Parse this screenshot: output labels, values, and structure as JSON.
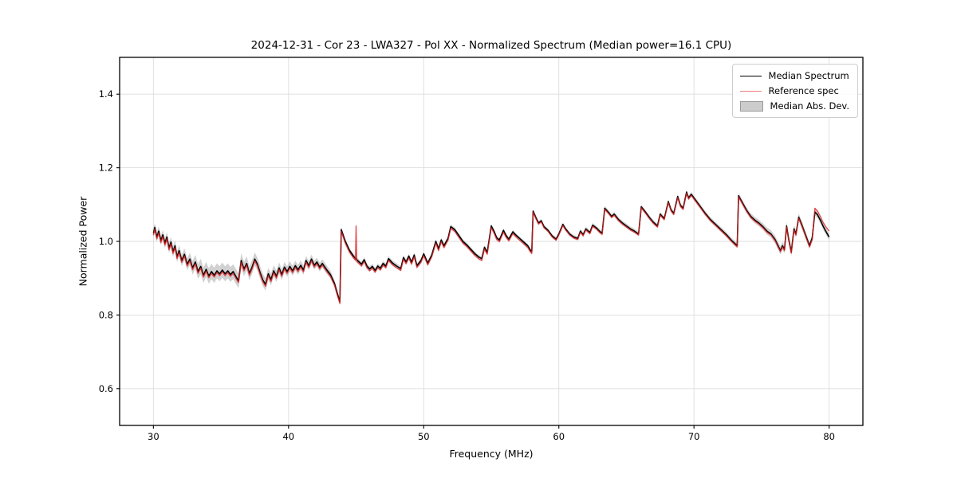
{
  "chart_data": {
    "type": "line",
    "title": "2024-12-31 - Cor 23 - LWA327 - Pol XX - Normalized Spectrum (Median power=16.1 CPU)",
    "xlabel": "Frequency (MHz)",
    "ylabel": "Normalized Power",
    "xlim": [
      27.5,
      82.5
    ],
    "ylim": [
      0.5,
      1.5
    ],
    "xticks": [
      30,
      40,
      50,
      60,
      70,
      80
    ],
    "yticks": [
      0.6,
      0.8,
      1.0,
      1.2,
      1.4
    ],
    "grid": true,
    "legend_position": "upper right",
    "colors": {
      "median": "#000000",
      "reference": "#dd2222",
      "reference_opacity": 0.8,
      "reference_legend": "#ee8080",
      "band_fill": "#999999",
      "band_opacity": 0.45,
      "band_legend": "#cccccc",
      "grid": "#dddddd",
      "spine": "#000000"
    },
    "x": [
      30.0,
      30.1,
      30.25,
      30.4,
      30.55,
      30.7,
      30.85,
      31.0,
      31.15,
      31.3,
      31.45,
      31.6,
      31.75,
      31.9,
      32.1,
      32.3,
      32.5,
      32.7,
      32.9,
      33.1,
      33.3,
      33.5,
      33.7,
      33.9,
      34.1,
      34.3,
      34.5,
      34.7,
      34.9,
      35.1,
      35.3,
      35.5,
      35.7,
      35.9,
      36.1,
      36.3,
      36.5,
      36.7,
      36.9,
      37.1,
      37.3,
      37.5,
      37.7,
      37.9,
      38.1,
      38.3,
      38.5,
      38.7,
      38.9,
      39.1,
      39.3,
      39.5,
      39.7,
      39.9,
      40.1,
      40.3,
      40.5,
      40.7,
      40.9,
      41.1,
      41.3,
      41.5,
      41.7,
      41.9,
      42.1,
      42.3,
      42.5,
      42.8,
      43.1,
      43.4,
      43.6,
      43.8,
      43.9,
      44.2,
      44.5,
      44.8,
      44.95,
      45.0,
      45.05,
      45.2,
      45.4,
      45.6,
      45.8,
      46.0,
      46.2,
      46.4,
      46.6,
      46.8,
      47.0,
      47.2,
      47.4,
      47.7,
      48.0,
      48.3,
      48.5,
      48.7,
      48.9,
      49.1,
      49.3,
      49.5,
      49.8,
      50.0,
      50.3,
      50.6,
      50.9,
      51.1,
      51.3,
      51.5,
      51.8,
      52.0,
      52.3,
      52.6,
      52.9,
      53.2,
      53.5,
      53.8,
      54.1,
      54.3,
      54.5,
      54.7,
      55.0,
      55.2,
      55.4,
      55.6,
      55.9,
      56.1,
      56.3,
      56.6,
      56.8,
      57.1,
      57.4,
      57.7,
      57.9,
      58.0,
      58.1,
      58.3,
      58.5,
      58.7,
      58.9,
      59.2,
      59.5,
      59.8,
      60.0,
      60.3,
      60.5,
      60.8,
      61.1,
      61.4,
      61.6,
      61.8,
      62.0,
      62.3,
      62.5,
      62.8,
      63.0,
      63.2,
      63.4,
      63.7,
      63.9,
      64.1,
      64.4,
      64.7,
      65.0,
      65.3,
      65.6,
      65.9,
      66.1,
      66.4,
      66.7,
      67.0,
      67.3,
      67.5,
      67.8,
      68.1,
      68.3,
      68.5,
      68.8,
      69.0,
      69.2,
      69.45,
      69.6,
      69.8,
      70.0,
      70.4,
      70.8,
      71.2,
      71.6,
      72.0,
      72.4,
      72.8,
      73.2,
      73.3,
      73.6,
      73.9,
      74.2,
      74.5,
      74.8,
      75.1,
      75.4,
      75.7,
      76.0,
      76.2,
      76.4,
      76.55,
      76.7,
      76.85,
      77.0,
      77.2,
      77.4,
      77.55,
      77.75,
      77.95,
      78.15,
      78.35,
      78.55,
      78.75,
      78.95,
      79.15,
      79.35,
      79.55,
      79.75,
      80.0
    ],
    "series": [
      {
        "name": "Median Spectrum",
        "values": [
          1.022,
          1.038,
          1.012,
          1.028,
          1.002,
          1.018,
          0.995,
          1.012,
          0.982,
          0.998,
          0.972,
          0.988,
          0.958,
          0.975,
          0.948,
          0.965,
          0.938,
          0.952,
          0.928,
          0.944,
          0.918,
          0.932,
          0.908,
          0.924,
          0.906,
          0.918,
          0.908,
          0.92,
          0.912,
          0.922,
          0.912,
          0.92,
          0.91,
          0.918,
          0.905,
          0.893,
          0.948,
          0.925,
          0.94,
          0.913,
          0.93,
          0.952,
          0.938,
          0.915,
          0.895,
          0.883,
          0.912,
          0.896,
          0.92,
          0.905,
          0.928,
          0.91,
          0.93,
          0.918,
          0.932,
          0.92,
          0.934,
          0.923,
          0.935,
          0.922,
          0.948,
          0.934,
          0.952,
          0.935,
          0.944,
          0.93,
          0.94,
          0.924,
          0.91,
          0.886,
          0.86,
          0.836,
          1.032,
          1.0,
          0.976,
          0.96,
          0.954,
          0.952,
          0.95,
          0.945,
          0.938,
          0.95,
          0.933,
          0.925,
          0.932,
          0.921,
          0.933,
          0.927,
          0.94,
          0.933,
          0.953,
          0.941,
          0.933,
          0.926,
          0.956,
          0.944,
          0.96,
          0.943,
          0.963,
          0.934,
          0.948,
          0.966,
          0.941,
          0.963,
          1.0,
          0.98,
          1.004,
          0.988,
          1.008,
          1.04,
          1.032,
          1.016,
          1.0,
          0.99,
          0.978,
          0.966,
          0.957,
          0.953,
          0.984,
          0.97,
          1.042,
          1.028,
          1.01,
          1.004,
          1.03,
          1.016,
          1.006,
          1.026,
          1.018,
          1.008,
          0.998,
          0.988,
          0.976,
          0.972,
          1.082,
          1.065,
          1.05,
          1.056,
          1.04,
          1.03,
          1.015,
          1.006,
          1.02,
          1.046,
          1.034,
          1.02,
          1.012,
          1.008,
          1.028,
          1.018,
          1.034,
          1.024,
          1.044,
          1.036,
          1.028,
          1.022,
          1.09,
          1.078,
          1.068,
          1.074,
          1.06,
          1.05,
          1.042,
          1.034,
          1.028,
          1.02,
          1.094,
          1.08,
          1.065,
          1.052,
          1.042,
          1.074,
          1.062,
          1.108,
          1.086,
          1.076,
          1.122,
          1.098,
          1.09,
          1.134,
          1.118,
          1.128,
          1.118,
          1.098,
          1.078,
          1.06,
          1.046,
          1.032,
          1.018,
          1.002,
          0.988,
          1.124,
          1.104,
          1.084,
          1.068,
          1.058,
          1.05,
          1.04,
          1.028,
          1.02,
          1.005,
          0.99,
          0.975,
          0.988,
          0.978,
          1.042,
          1.008,
          0.971,
          1.034,
          1.02,
          1.066,
          1.048,
          1.028,
          1.008,
          0.988,
          1.01,
          1.08,
          1.072,
          1.058,
          1.042,
          1.028,
          1.012
        ]
      },
      {
        "name": "Reference spec",
        "values": [
          1.017,
          1.033,
          1.007,
          1.023,
          0.997,
          1.013,
          0.99,
          1.007,
          0.977,
          0.993,
          0.967,
          0.983,
          0.953,
          0.97,
          0.943,
          0.96,
          0.933,
          0.947,
          0.923,
          0.939,
          0.913,
          0.927,
          0.903,
          0.919,
          0.901,
          0.913,
          0.903,
          0.915,
          0.907,
          0.917,
          0.907,
          0.915,
          0.905,
          0.913,
          0.9,
          0.888,
          0.943,
          0.92,
          0.935,
          0.908,
          0.925,
          0.947,
          0.933,
          0.91,
          0.89,
          0.878,
          0.907,
          0.891,
          0.915,
          0.9,
          0.923,
          0.905,
          0.925,
          0.913,
          0.927,
          0.915,
          0.929,
          0.918,
          0.93,
          0.917,
          0.943,
          0.929,
          0.947,
          0.93,
          0.939,
          0.925,
          0.935,
          0.919,
          0.905,
          0.881,
          0.855,
          0.831,
          1.027,
          0.995,
          0.971,
          0.955,
          0.949,
          1.042,
          0.945,
          0.94,
          0.933,
          0.945,
          0.928,
          0.92,
          0.927,
          0.916,
          0.928,
          0.922,
          0.935,
          0.928,
          0.948,
          0.936,
          0.928,
          0.921,
          0.951,
          0.939,
          0.955,
          0.938,
          0.958,
          0.929,
          0.943,
          0.961,
          0.936,
          0.958,
          0.995,
          0.975,
          0.999,
          0.983,
          1.003,
          1.035,
          1.027,
          1.011,
          0.995,
          0.985,
          0.973,
          0.961,
          0.952,
          0.948,
          0.979,
          0.965,
          1.037,
          1.023,
          1.005,
          0.999,
          1.025,
          1.011,
          1.001,
          1.021,
          1.013,
          1.003,
          0.993,
          0.983,
          0.971,
          0.967,
          1.079,
          1.062,
          1.047,
          1.053,
          1.037,
          1.027,
          1.012,
          1.003,
          1.017,
          1.043,
          1.031,
          1.017,
          1.009,
          1.005,
          1.025,
          1.015,
          1.031,
          1.021,
          1.041,
          1.033,
          1.025,
          1.019,
          1.087,
          1.075,
          1.065,
          1.071,
          1.057,
          1.047,
          1.039,
          1.031,
          1.025,
          1.017,
          1.091,
          1.077,
          1.062,
          1.049,
          1.039,
          1.071,
          1.059,
          1.105,
          1.083,
          1.073,
          1.119,
          1.095,
          1.087,
          1.131,
          1.115,
          1.125,
          1.115,
          1.095,
          1.075,
          1.057,
          1.043,
          1.029,
          1.015,
          0.999,
          0.985,
          1.121,
          1.101,
          1.081,
          1.065,
          1.055,
          1.047,
          1.037,
          1.025,
          1.017,
          1.002,
          0.987,
          0.972,
          0.985,
          0.975,
          1.039,
          1.005,
          0.968,
          1.031,
          1.017,
          1.063,
          1.045,
          1.025,
          1.005,
          0.985,
          1.005,
          1.09,
          1.082,
          1.068,
          1.052,
          1.04,
          1.028
        ]
      }
    ],
    "band": {
      "name": "Median Abs. Dev.",
      "halfwidth_breakpoints": [
        [
          30,
          0.012
        ],
        [
          32.5,
          0.016
        ],
        [
          33.5,
          0.021
        ],
        [
          36.5,
          0.02
        ],
        [
          38,
          0.017
        ],
        [
          40,
          0.014
        ],
        [
          43,
          0.011
        ],
        [
          44,
          0.007
        ],
        [
          47,
          0.007
        ],
        [
          52,
          0.006
        ],
        [
          58,
          0.005
        ],
        [
          63,
          0.006
        ],
        [
          69,
          0.006
        ],
        [
          73,
          0.007
        ],
        [
          74,
          0.008
        ],
        [
          76.5,
          0.011
        ],
        [
          78,
          0.01
        ],
        [
          80,
          0.009
        ]
      ]
    }
  }
}
